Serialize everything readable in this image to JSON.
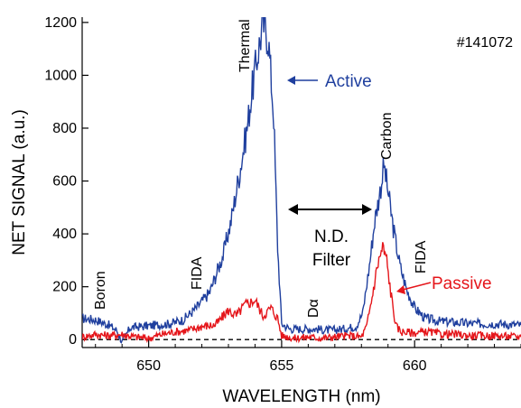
{
  "chart_data": {
    "type": "line",
    "xlabel": "WAVELENGTH (nm)",
    "ylabel": "NET SIGNAL (a.u.)",
    "xlim": [
      647.5,
      664
    ],
    "ylim": [
      -30,
      1220
    ],
    "xticks": [
      650,
      655,
      660
    ],
    "yticks": [
      0,
      200,
      400,
      600,
      800,
      1000,
      1200
    ],
    "grid": false,
    "shot_label": "#141072",
    "zero_line": {
      "y": 0,
      "style": "dashed",
      "color": "#000000"
    },
    "series": [
      {
        "name": "Active",
        "color": "#1f3f9e",
        "points": [
          [
            647.5,
            80
          ],
          [
            648.0,
            75
          ],
          [
            648.5,
            55
          ],
          [
            648.8,
            35
          ],
          [
            649.0,
            -10
          ],
          [
            649.3,
            45
          ],
          [
            649.8,
            50
          ],
          [
            650.3,
            55
          ],
          [
            650.8,
            60
          ],
          [
            651.3,
            75
          ],
          [
            651.8,
            120
          ],
          [
            652.3,
            180
          ],
          [
            652.8,
            320
          ],
          [
            653.1,
            450
          ],
          [
            653.4,
            620
          ],
          [
            653.7,
            800
          ],
          [
            653.9,
            950
          ],
          [
            654.1,
            1080
          ],
          [
            654.3,
            1200
          ],
          [
            654.5,
            1140
          ],
          [
            654.7,
            850
          ],
          [
            654.85,
            350
          ],
          [
            655.0,
            60
          ],
          [
            655.3,
            40
          ],
          [
            655.8,
            40
          ],
          [
            656.3,
            40
          ],
          [
            656.8,
            35
          ],
          [
            657.3,
            40
          ],
          [
            657.8,
            50
          ],
          [
            658.05,
            100
          ],
          [
            658.3,
            280
          ],
          [
            658.5,
            450
          ],
          [
            658.7,
            560
          ],
          [
            658.85,
            660
          ],
          [
            659.0,
            560
          ],
          [
            659.2,
            420
          ],
          [
            659.45,
            280
          ],
          [
            659.7,
            190
          ],
          [
            660.0,
            120
          ],
          [
            660.4,
            80
          ],
          [
            660.9,
            70
          ],
          [
            661.5,
            65
          ],
          [
            662.2,
            60
          ],
          [
            663.0,
            60
          ],
          [
            664.0,
            55
          ]
        ]
      },
      {
        "name": "Passive",
        "color": "#e5161b",
        "points": [
          [
            647.5,
            10
          ],
          [
            648.0,
            20
          ],
          [
            648.5,
            15
          ],
          [
            649.0,
            20
          ],
          [
            649.5,
            10
          ],
          [
            650.0,
            5
          ],
          [
            650.5,
            20
          ],
          [
            651.0,
            30
          ],
          [
            651.5,
            35
          ],
          [
            652.0,
            50
          ],
          [
            652.5,
            55
          ],
          [
            653.0,
            110
          ],
          [
            653.3,
            90
          ],
          [
            653.6,
            130
          ],
          [
            654.0,
            150
          ],
          [
            654.3,
            90
          ],
          [
            654.6,
            120
          ],
          [
            654.85,
            80
          ],
          [
            655.0,
            15
          ],
          [
            655.5,
            5
          ],
          [
            656.0,
            10
          ],
          [
            656.5,
            5
          ],
          [
            657.0,
            10
          ],
          [
            657.5,
            15
          ],
          [
            658.0,
            10
          ],
          [
            658.2,
            50
          ],
          [
            658.4,
            160
          ],
          [
            658.6,
            280
          ],
          [
            658.8,
            350
          ],
          [
            658.95,
            300
          ],
          [
            659.1,
            180
          ],
          [
            659.3,
            50
          ],
          [
            659.5,
            30
          ],
          [
            660.0,
            25
          ],
          [
            660.5,
            30
          ],
          [
            661.0,
            20
          ],
          [
            661.5,
            20
          ],
          [
            662.0,
            15
          ],
          [
            663.0,
            15
          ],
          [
            664.0,
            10
          ]
        ]
      }
    ],
    "annotations": {
      "active": {
        "text": "Active",
        "color": "#1f3f9e"
      },
      "passive": {
        "text": "Passive",
        "color": "#e5161b"
      },
      "thermal": "Thermal",
      "carbon": "Carbon",
      "boron": "Boron",
      "fida_left": "FIDA",
      "fida_right": "FIDA",
      "d_alpha": "Dα",
      "nd_filter_line1": "N.D.",
      "nd_filter_line2": "Filter"
    }
  }
}
